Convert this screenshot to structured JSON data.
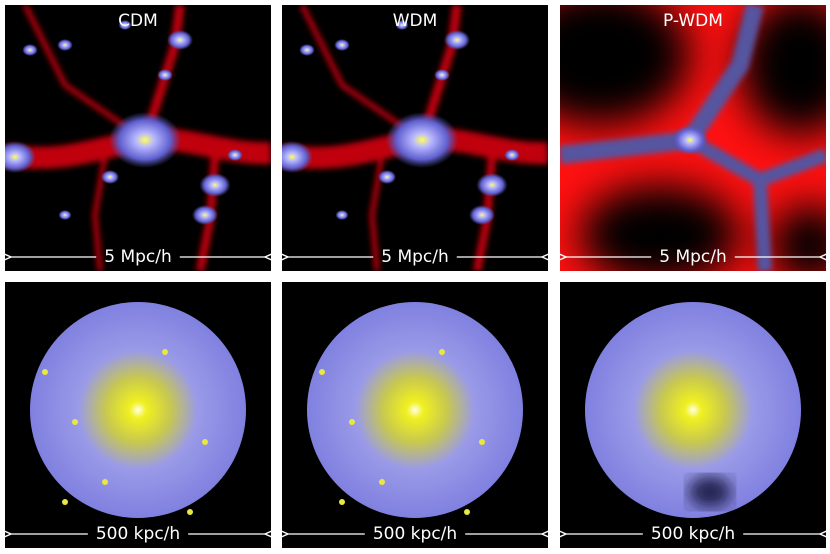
{
  "rows": [
    {
      "panels": [
        {
          "title": "CDM",
          "scale": "5 Mpc/h"
        },
        {
          "title": "WDM",
          "scale": "5 Mpc/h"
        },
        {
          "title": "P-WDM",
          "scale": "5 Mpc/h"
        }
      ]
    },
    {
      "panels": [
        {
          "scale": "500 kpc/h"
        },
        {
          "scale": "500 kpc/h"
        },
        {
          "scale": "500 kpc/h"
        }
      ]
    }
  ]
}
